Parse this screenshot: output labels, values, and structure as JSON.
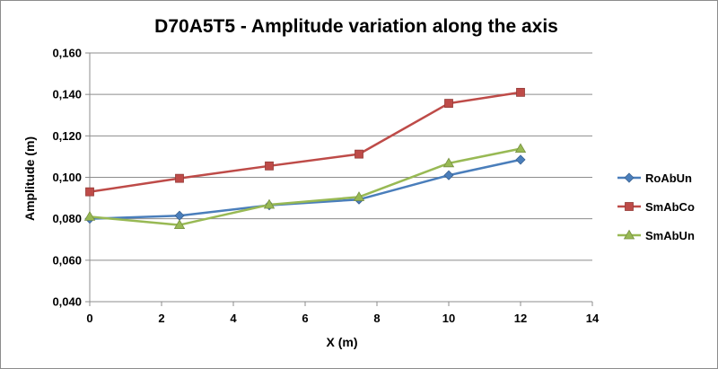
{
  "chart_data": {
    "type": "line",
    "title": "D70A5T5 - Amplitude variation along the axis",
    "xlabel": "X (m)",
    "ylabel": "Amplitude (m)",
    "xlim": [
      0,
      14
    ],
    "ylim": [
      0.04,
      0.16
    ],
    "x_ticks": [
      0,
      2,
      4,
      6,
      8,
      10,
      12,
      14
    ],
    "x_tick_labels": [
      "0",
      "2",
      "4",
      "6",
      "8",
      "10",
      "12",
      "14"
    ],
    "y_ticks": [
      0.04,
      0.06,
      0.08,
      0.1,
      0.12,
      0.14,
      0.16
    ],
    "y_tick_labels": [
      "0,040",
      "0,060",
      "0,080",
      "0,100",
      "0,120",
      "0,140",
      "0,160"
    ],
    "grid": "horizontal",
    "legend_position": "right",
    "series": [
      {
        "name": "RoAbUn",
        "color": "#4a7ebb",
        "marker": "diamond",
        "x": [
          0,
          2.5,
          5,
          7.5,
          10,
          12
        ],
        "values": [
          0.08,
          0.0815,
          0.0865,
          0.0893,
          0.101,
          0.1085
        ]
      },
      {
        "name": "SmAbCo",
        "color": "#be4b48",
        "marker": "square",
        "x": [
          0,
          2.5,
          5,
          7.5,
          10,
          12
        ],
        "values": [
          0.093,
          0.0995,
          0.1055,
          0.1112,
          0.1357,
          0.141
        ]
      },
      {
        "name": "SmAbUn",
        "color": "#98b954",
        "marker": "triangle",
        "x": [
          0,
          2.5,
          5,
          7.5,
          10,
          12
        ],
        "values": [
          0.081,
          0.077,
          0.0868,
          0.0905,
          0.1068,
          0.1138
        ]
      }
    ]
  }
}
